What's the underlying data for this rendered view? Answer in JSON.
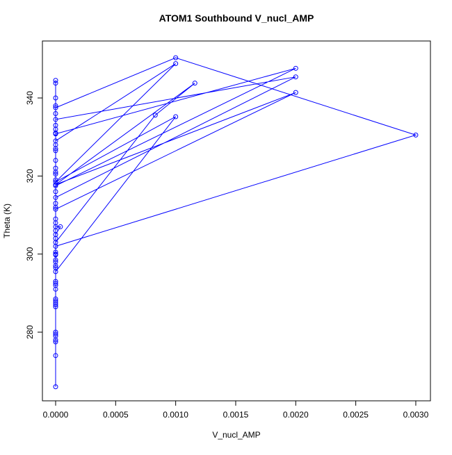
{
  "chart_data": {
    "type": "line",
    "title": "ATOM1 Southbound V_nucl_AMP",
    "x_label": "V_nucl_AMP",
    "y_label": "Theta (K)",
    "x": [
      0,
      0,
      0,
      0,
      0.001,
      0.003,
      0,
      0,
      0,
      0,
      0,
      0.001,
      0,
      0.001,
      0,
      0,
      0,
      0,
      0,
      0,
      0.002,
      0,
      0,
      0,
      0.002,
      0,
      0,
      0,
      0.002,
      0,
      0.00116,
      0.00083,
      0,
      0,
      4e-05,
      0,
      0,
      0,
      0,
      0,
      0,
      0,
      0,
      0,
      0,
      0,
      0,
      0,
      0,
      0,
      0,
      0,
      0,
      0,
      0,
      0,
      0,
      0,
      0,
      0,
      0,
      0,
      0,
      0,
      0,
      0,
      0,
      0,
      0,
      0
    ],
    "series": [
      {
        "name": "Theta",
        "color": "#0000ff",
        "values": [
          344.5,
          343.8,
          340,
          337.5,
          350.3,
          330.5,
          302,
          300.5,
          298,
          296.5,
          295.5,
          335.2,
          318.5,
          348.8,
          329,
          327,
          326.5,
          322,
          320.5,
          317.5,
          347.6,
          330.8,
          332,
          334.5,
          345.4,
          314.5,
          312,
          311.5,
          341.4,
          317.8,
          343.8,
          335.6,
          303,
          307,
          307,
          305,
          309,
          308,
          306,
          304,
          300,
          299.8,
          298.5,
          297,
          293,
          292.5,
          292,
          291,
          288.5,
          288,
          287.5,
          287,
          286.5,
          280,
          279.5,
          279,
          278,
          277.5,
          274,
          266,
          313,
          316,
          319,
          321,
          324,
          328,
          331,
          333,
          336,
          338
        ]
      }
    ],
    "xlim": [
      -0.00011,
      0.003122
    ],
    "ylim": [
      262.4,
      354.6
    ],
    "xticks": [
      {
        "value": 0,
        "label": "0.0000"
      },
      {
        "value": 0.0005,
        "label": "0.0005"
      },
      {
        "value": 0.001,
        "label": "0.0010"
      },
      {
        "value": 0.0015,
        "label": "0.0015"
      },
      {
        "value": 0.002,
        "label": "0.0020"
      },
      {
        "value": 0.0025,
        "label": "0.0025"
      },
      {
        "value": 0.003,
        "label": "0.0030"
      }
    ],
    "yticks": [
      280,
      300,
      320,
      340
    ]
  }
}
